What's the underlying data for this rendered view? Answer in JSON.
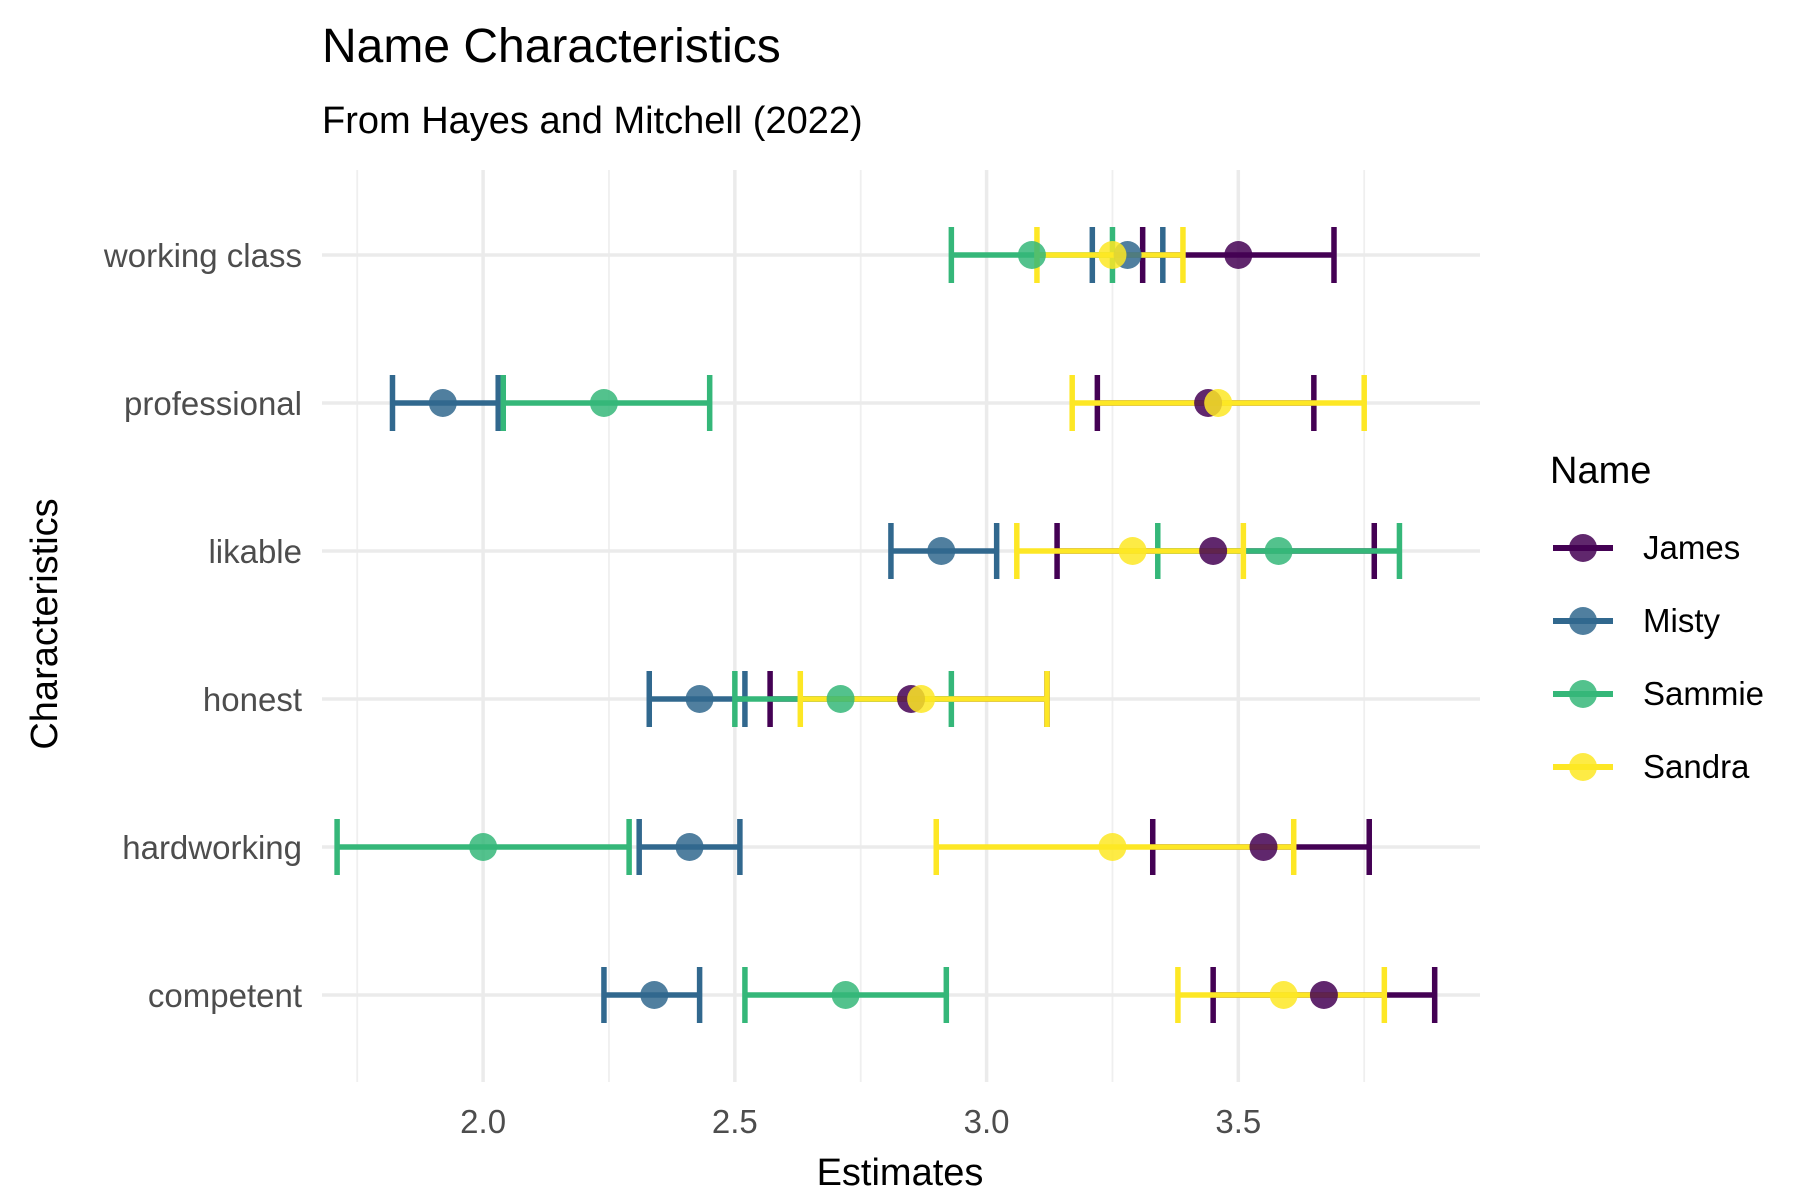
{
  "chart_data": {
    "type": "scatter",
    "title": "Name Characteristics",
    "subtitle": "From Hayes and Mitchell (2022)",
    "xlabel": "Estimates",
    "ylabel": "Characteristics",
    "xlim": [
      1.68,
      3.98
    ],
    "x_ticks": [
      "2.0",
      "2.5",
      "3.0",
      "3.5"
    ],
    "x_tick_values": [
      2.0,
      2.5,
      3.0,
      3.5
    ],
    "x_minor_ticks": [
      1.75,
      2.25,
      2.75,
      3.25,
      3.75
    ],
    "categories": [
      "working class",
      "professional",
      "likable",
      "honest",
      "hardworking",
      "competent"
    ],
    "grid": true,
    "legend": {
      "title": "Name",
      "position": "right"
    },
    "series": [
      {
        "name": "James",
        "color": "#440154",
        "points": [
          {
            "category": "working class",
            "estimate": 3.5,
            "low": 3.31,
            "high": 3.69
          },
          {
            "category": "professional",
            "estimate": 3.44,
            "low": 3.22,
            "high": 3.65
          },
          {
            "category": "likable",
            "estimate": 3.45,
            "low": 3.14,
            "high": 3.77
          },
          {
            "category": "honest",
            "estimate": 2.85,
            "low": 2.57,
            "high": 3.12
          },
          {
            "category": "hardworking",
            "estimate": 3.55,
            "low": 3.33,
            "high": 3.76
          },
          {
            "category": "competent",
            "estimate": 3.67,
            "low": 3.45,
            "high": 3.89
          }
        ]
      },
      {
        "name": "Misty",
        "color": "#31688E",
        "points": [
          {
            "category": "working class",
            "estimate": 3.28,
            "low": 3.21,
            "high": 3.35
          },
          {
            "category": "professional",
            "estimate": 1.92,
            "low": 1.82,
            "high": 2.03
          },
          {
            "category": "likable",
            "estimate": 2.91,
            "low": 2.81,
            "high": 3.02
          },
          {
            "category": "honest",
            "estimate": 2.43,
            "low": 2.33,
            "high": 2.52
          },
          {
            "category": "hardworking",
            "estimate": 2.41,
            "low": 2.31,
            "high": 2.51
          },
          {
            "category": "competent",
            "estimate": 2.34,
            "low": 2.24,
            "high": 2.43
          }
        ]
      },
      {
        "name": "Sammie",
        "color": "#35B779",
        "points": [
          {
            "category": "working class",
            "estimate": 3.09,
            "low": 2.93,
            "high": 3.25
          },
          {
            "category": "professional",
            "estimate": 2.24,
            "low": 2.04,
            "high": 2.45
          },
          {
            "category": "likable",
            "estimate": 3.58,
            "low": 3.34,
            "high": 3.82
          },
          {
            "category": "honest",
            "estimate": 2.71,
            "low": 2.5,
            "high": 2.93
          },
          {
            "category": "hardworking",
            "estimate": 2.0,
            "low": 1.71,
            "high": 2.29
          },
          {
            "category": "competent",
            "estimate": 2.72,
            "low": 2.52,
            "high": 2.92
          }
        ]
      },
      {
        "name": "Sandra",
        "color": "#FDE725",
        "points": [
          {
            "category": "working class",
            "estimate": 3.25,
            "low": 3.1,
            "high": 3.39
          },
          {
            "category": "professional",
            "estimate": 3.46,
            "low": 3.17,
            "high": 3.75
          },
          {
            "category": "likable",
            "estimate": 3.29,
            "low": 3.06,
            "high": 3.51
          },
          {
            "category": "honest",
            "estimate": 2.87,
            "low": 2.63,
            "high": 3.12
          },
          {
            "category": "hardworking",
            "estimate": 3.25,
            "low": 2.9,
            "high": 3.61
          },
          {
            "category": "competent",
            "estimate": 3.59,
            "low": 3.38,
            "high": 3.79
          }
        ]
      }
    ]
  }
}
